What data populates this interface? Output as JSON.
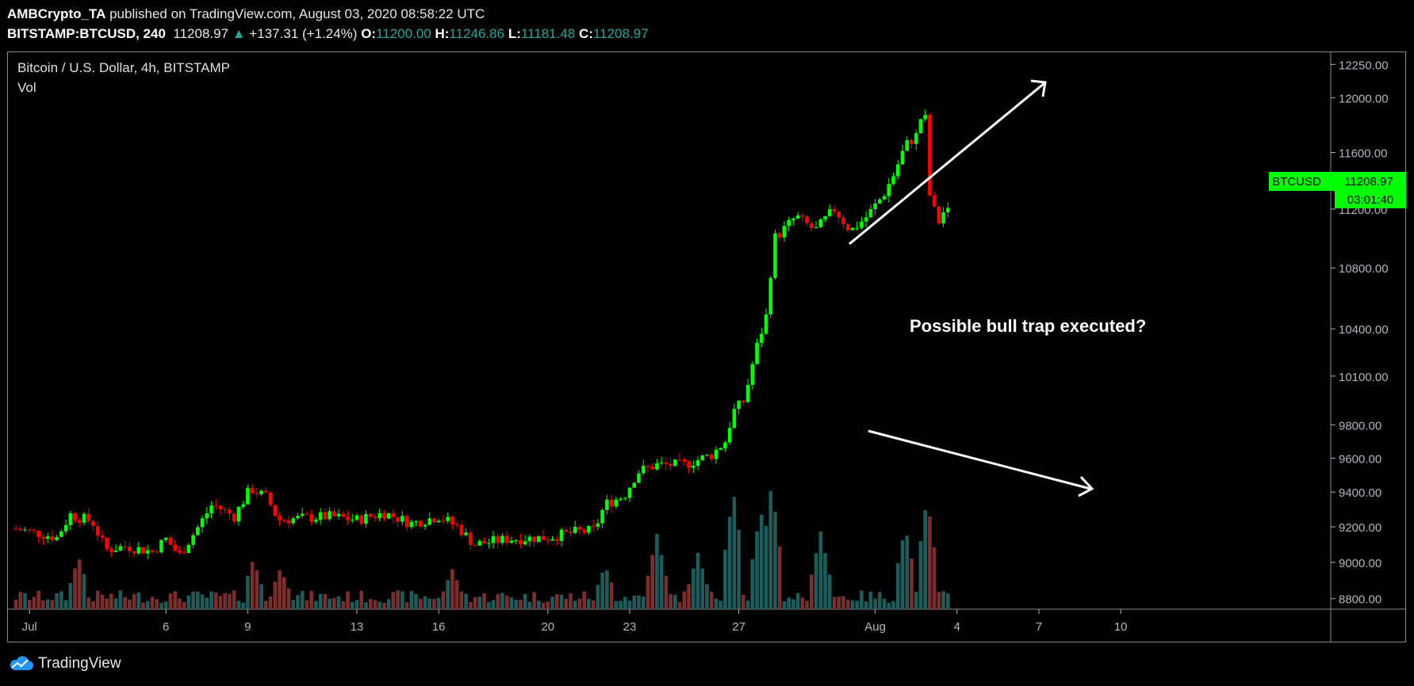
{
  "header": {
    "author": "AMBCrypto_TA",
    "published": "published on TradingView.com, August 03, 2020 08:58:22 UTC",
    "symbol": "BITSTAMP:BTCUSD, 240",
    "last": "11208.97",
    "change": "+137.31 (+1.24%)",
    "o_label": "O:",
    "o": "11200.00",
    "h_label": "H:",
    "h": "11246.86",
    "l_label": "L:",
    "l": "11181.48",
    "c_label": "C:",
    "c": "11208.97"
  },
  "footer": {
    "brand": "TradingView"
  },
  "colors": {
    "up": "#00ff00",
    "down": "#ff0000",
    "vol_up": "#1e5c5c",
    "vol_down": "#7a2e2e",
    "axis": "#b2b5be",
    "badge": "#00ff00"
  },
  "chart_data": {
    "type": "candlestick",
    "title": "Bitcoin / U.S. Dollar, 4h, BITSTAMP",
    "subtitle": "Vol",
    "y_scale": "log",
    "ylim": [
      8760,
      12300
    ],
    "y_ticks": [
      "12250.00",
      "12000.00",
      "11600.00",
      "11200.00",
      "10800.00",
      "10400.00",
      "10100.00",
      "9800.00",
      "9600.00",
      "9400.00",
      "9200.00",
      "9000.00",
      "8800.00"
    ],
    "x_ticks": [
      {
        "label": "Jul",
        "day": 0.5
      },
      {
        "label": "6",
        "day": 5.5
      },
      {
        "label": "9",
        "day": 8.5
      },
      {
        "label": "13",
        "day": 12.5
      },
      {
        "label": "16",
        "day": 15.5
      },
      {
        "label": "20",
        "day": 19.5
      },
      {
        "label": "23",
        "day": 22.5
      },
      {
        "label": "27",
        "day": 26.5
      },
      {
        "label": "Aug",
        "day": 31.5
      },
      {
        "label": "4",
        "day": 34.5
      },
      {
        "label": "7",
        "day": 37.5
      },
      {
        "label": "10",
        "day": 40.5
      }
    ],
    "last_price_badge": {
      "symbol": "BTCUSD",
      "price": "11208.97",
      "countdown": "03:01:40"
    },
    "annotation": "Possible bull trap executed?",
    "price_keypoints": [
      {
        "day": 0.0,
        "price": 9190
      },
      {
        "day": 1.5,
        "price": 9140
      },
      {
        "day": 2.0,
        "price": 9270
      },
      {
        "day": 2.8,
        "price": 9230
      },
      {
        "day": 3.3,
        "price": 9070
      },
      {
        "day": 4.0,
        "price": 9090
      },
      {
        "day": 5.0,
        "price": 9060
      },
      {
        "day": 5.5,
        "price": 9130
      },
      {
        "day": 6.0,
        "price": 9040
      },
      {
        "day": 6.6,
        "price": 9180
      },
      {
        "day": 7.2,
        "price": 9330
      },
      {
        "day": 8.0,
        "price": 9260
      },
      {
        "day": 8.6,
        "price": 9420
      },
      {
        "day": 9.2,
        "price": 9370
      },
      {
        "day": 9.6,
        "price": 9240
      },
      {
        "day": 10.5,
        "price": 9250
      },
      {
        "day": 11.5,
        "price": 9260
      },
      {
        "day": 12.5,
        "price": 9240
      },
      {
        "day": 13.5,
        "price": 9280
      },
      {
        "day": 14.5,
        "price": 9220
      },
      {
        "day": 15.5,
        "price": 9260
      },
      {
        "day": 16.2,
        "price": 9200
      },
      {
        "day": 16.8,
        "price": 9100
      },
      {
        "day": 18.0,
        "price": 9130
      },
      {
        "day": 19.5,
        "price": 9140
      },
      {
        "day": 20.5,
        "price": 9170
      },
      {
        "day": 21.2,
        "price": 9180
      },
      {
        "day": 21.6,
        "price": 9330
      },
      {
        "day": 22.3,
        "price": 9380
      },
      {
        "day": 22.8,
        "price": 9520
      },
      {
        "day": 23.5,
        "price": 9560
      },
      {
        "day": 24.5,
        "price": 9560
      },
      {
        "day": 25.5,
        "price": 9620
      },
      {
        "day": 26.0,
        "price": 9700
      },
      {
        "day": 26.3,
        "price": 9880
      },
      {
        "day": 26.7,
        "price": 9950
      },
      {
        "day": 27.1,
        "price": 10250
      },
      {
        "day": 27.5,
        "price": 10480
      },
      {
        "day": 27.8,
        "price": 11000
      },
      {
        "day": 28.1,
        "price": 11050
      },
      {
        "day": 28.6,
        "price": 11150
      },
      {
        "day": 29.3,
        "price": 11050
      },
      {
        "day": 30.0,
        "price": 11200
      },
      {
        "day": 30.6,
        "price": 11050
      },
      {
        "day": 31.2,
        "price": 11150
      },
      {
        "day": 31.8,
        "price": 11300
      },
      {
        "day": 32.2,
        "price": 11450
      },
      {
        "day": 32.6,
        "price": 11650
      },
      {
        "day": 33.0,
        "price": 11720
      },
      {
        "day": 33.3,
        "price": 11950
      },
      {
        "day": 33.5,
        "price": 11300
      },
      {
        "day": 33.8,
        "price": 11100
      },
      {
        "day": 34.0,
        "price": 11180
      },
      {
        "day": 34.3,
        "price": 11209
      }
    ],
    "volume_peaks": [
      {
        "day": 2.3,
        "vol": 0.42
      },
      {
        "day": 8.7,
        "vol": 0.4
      },
      {
        "day": 9.7,
        "vol": 0.33
      },
      {
        "day": 16.0,
        "vol": 0.32
      },
      {
        "day": 21.6,
        "vol": 0.35
      },
      {
        "day": 23.5,
        "vol": 0.6
      },
      {
        "day": 25.0,
        "vol": 0.45
      },
      {
        "day": 26.3,
        "vol": 0.95
      },
      {
        "day": 27.3,
        "vol": 0.8
      },
      {
        "day": 27.7,
        "vol": 1.0
      },
      {
        "day": 29.5,
        "vol": 0.62
      },
      {
        "day": 32.6,
        "vol": 0.66
      },
      {
        "day": 33.4,
        "vol": 0.89
      }
    ]
  }
}
